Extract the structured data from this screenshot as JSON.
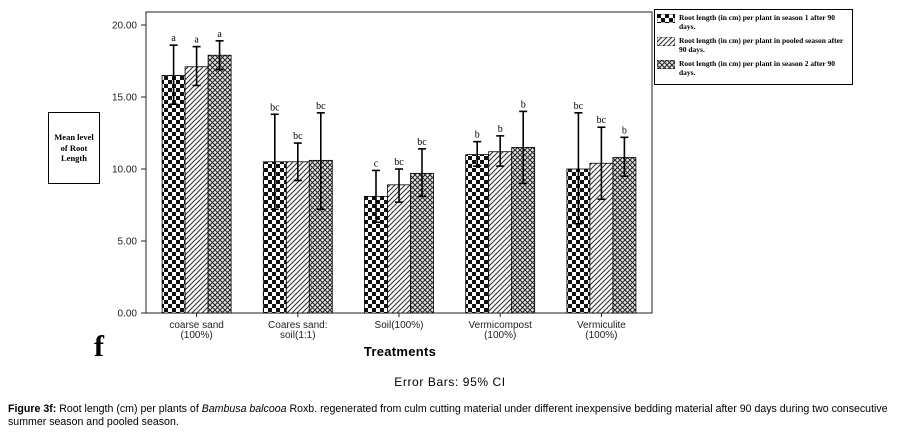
{
  "chart_data": {
    "type": "bar",
    "categories": [
      "coarse sand\n(100%)",
      "Coares sand:\nsoil(1:1)",
      "Soil(100%)",
      "Vermicompost\n(100%)",
      "Vermiculite\n(100%)"
    ],
    "series": [
      {
        "name": "Root length (in cm) per plant in season 1 after 90 days.",
        "pattern": "checker",
        "values": [
          16.5,
          10.5,
          8.1,
          11.0,
          10.0
        ],
        "err_low": [
          14.5,
          7.2,
          6.3,
          10.2,
          6.2
        ],
        "err_high": [
          18.6,
          13.8,
          9.9,
          11.9,
          13.9
        ],
        "letters": [
          "a",
          "bc",
          "c",
          "b",
          "bc"
        ]
      },
      {
        "name": "Root length (in cm) per plant in pooled season after 90 days.",
        "pattern": "diagonal",
        "values": [
          17.1,
          10.5,
          8.9,
          11.2,
          10.4
        ],
        "err_low": [
          15.8,
          9.2,
          7.7,
          10.2,
          7.9
        ],
        "err_high": [
          18.5,
          11.8,
          10.0,
          12.3,
          12.9
        ],
        "letters": [
          "a",
          "bc",
          "bc",
          "b",
          "bc"
        ]
      },
      {
        "name": "Root length (in cm) per plant in season 2 after 90 days.",
        "pattern": "crosshatch",
        "values": [
          17.9,
          10.6,
          9.7,
          11.5,
          10.8
        ],
        "err_low": [
          16.9,
          7.2,
          8.1,
          9.0,
          9.5
        ],
        "err_high": [
          18.9,
          13.9,
          11.4,
          14.0,
          12.2
        ],
        "letters": [
          "a",
          "bc",
          "bc",
          "b",
          "b"
        ]
      }
    ],
    "yticks": [
      "0.00",
      "5.00",
      "10.00",
      "15.00",
      "20.00"
    ],
    "ylim": [
      0,
      21.5
    ],
    "ylabel": "Mean level of Root Length",
    "xlabel": "Treatments",
    "legend_position": "top-right",
    "grid": false,
    "plot_background": "#ffffff"
  },
  "panel_letter": "f",
  "error_note": "Error Bars: 95% CI",
  "caption": {
    "lead": "Figure 3f:",
    "part1": " Root length (cm) per plants of ",
    "species": "Bambusa balcooa",
    "part2": " Roxb. regenerated from culm cutting material under different inexpensive bedding material after 90 days during two consecutive summer season and pooled season."
  }
}
